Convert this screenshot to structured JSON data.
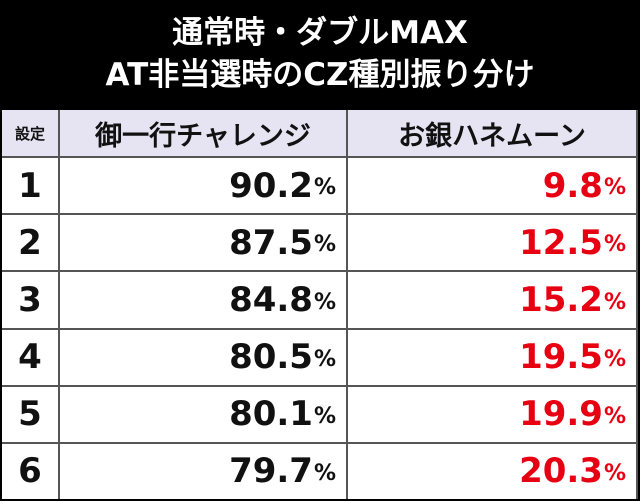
{
  "header": {
    "title": [
      "通常時・ダブルMAX",
      "AT非当選時のCZ種別振り分け"
    ]
  },
  "table": {
    "columns": [
      "設定",
      "御一行チャレンジ",
      "お銀ハネムーン"
    ],
    "rows": [
      [
        "1",
        {
          "value": "90.2",
          "unit": "%"
        },
        {
          "value": "9.8",
          "unit": "%"
        }
      ],
      [
        "2",
        {
          "value": "87.5",
          "unit": "%"
        },
        {
          "value": "12.5",
          "unit": "%"
        }
      ],
      [
        "3",
        {
          "value": "84.8",
          "unit": "%"
        },
        {
          "value": "15.2",
          "unit": "%"
        }
      ],
      [
        "4",
        {
          "value": "80.5",
          "unit": "%"
        },
        {
          "value": "19.5",
          "unit": "%"
        }
      ],
      [
        "5",
        {
          "value": "80.1",
          "unit": "%"
        },
        {
          "value": "19.9",
          "unit": "%"
        }
      ],
      [
        "6",
        {
          "value": "79.7",
          "unit": "%"
        },
        {
          "value": "20.3",
          "unit": "%"
        }
      ]
    ]
  }
}
